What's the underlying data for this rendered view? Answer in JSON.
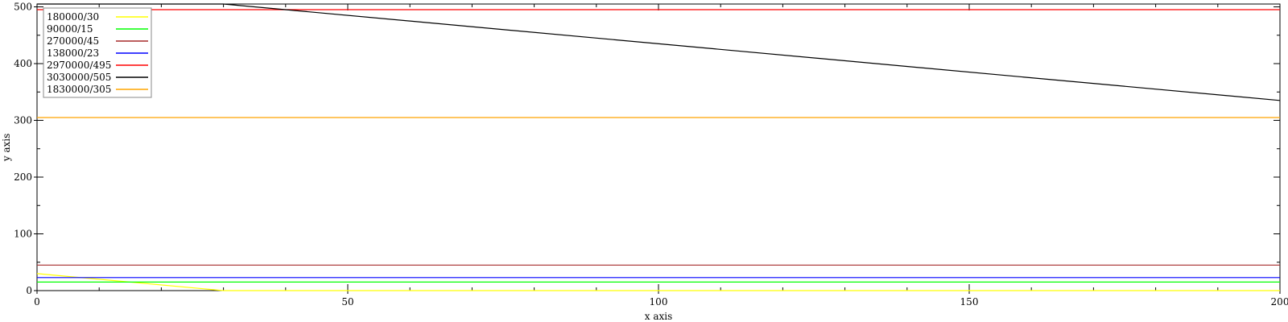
{
  "chart_data": {
    "type": "line",
    "title": "",
    "xlabel": "x axis",
    "ylabel": "y axis",
    "xlim": [
      0,
      200
    ],
    "ylim": [
      0,
      505
    ],
    "x_ticks": [
      0,
      50,
      100,
      150,
      200
    ],
    "y_ticks": [
      0,
      100,
      200,
      300,
      400,
      500
    ],
    "x_tick_labels": [
      "0",
      "50",
      "100",
      "150",
      "200"
    ],
    "y_tick_labels": [
      "0",
      "100",
      "200",
      "300",
      "400",
      "500"
    ],
    "grid": false,
    "legend_position": "top-left",
    "series": [
      {
        "name": "180000/30",
        "color": "#ffff00",
        "points": [
          [
            0,
            30
          ],
          [
            30,
            0
          ],
          [
            200,
            0
          ]
        ]
      },
      {
        "name": "90000/15",
        "color": "#00ff00",
        "points": [
          [
            0,
            15
          ],
          [
            200,
            15
          ]
        ]
      },
      {
        "name": "270000/45",
        "color": "#a52a2a",
        "points": [
          [
            0,
            45
          ],
          [
            200,
            45
          ]
        ]
      },
      {
        "name": "138000/23",
        "color": "#0000ff",
        "points": [
          [
            0,
            23
          ],
          [
            200,
            23
          ]
        ]
      },
      {
        "name": "2970000/495",
        "color": "#ff0000",
        "points": [
          [
            0,
            495
          ],
          [
            200,
            495
          ]
        ]
      },
      {
        "name": "3030000/505",
        "color": "#000000",
        "points": [
          [
            0,
            505
          ],
          [
            30,
            505
          ],
          [
            200,
            335
          ]
        ]
      },
      {
        "name": "1830000/305",
        "color": "#ffa500",
        "points": [
          [
            0,
            305
          ],
          [
            200,
            305
          ]
        ]
      }
    ]
  }
}
